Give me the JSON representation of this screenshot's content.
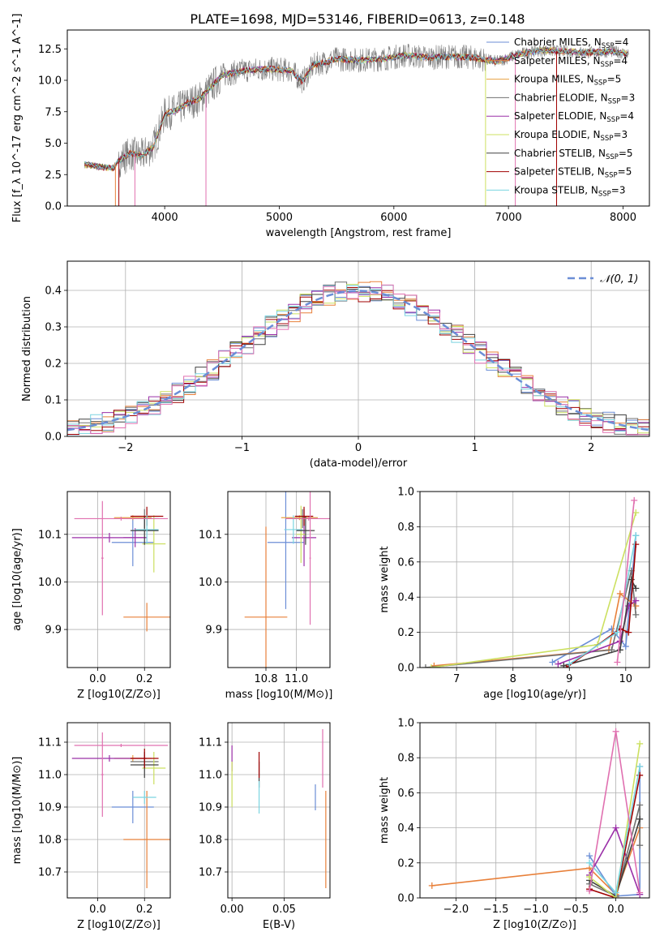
{
  "title": "PLATE=1698, MJD=53146, FIBERID=0613, z=0.148",
  "colors": {
    "chabrier_miles": "#6b8ed6",
    "salpeter_miles": "#e8803a",
    "kroupa_miles": "#e8803a",
    "chabrier_elodie": "#707070",
    "salpeter_elodie": "#9b30a8",
    "kroupa_elodie": "#cce060",
    "chabrier_stelib": "#404040",
    "salpeter_stelib": "#a00000",
    "kroupa_stelib": "#7ad4e0",
    "data": "#808080",
    "normal": "#6b8ed6",
    "pink": "#e070b0"
  },
  "chart_data": [
    {
      "id": "spectrum",
      "type": "line",
      "xlabel": "wavelength [Angstrom, rest frame]",
      "ylabel": "Flux [f_λ 10^-17 erg cm^-2 s^-1 A^-1]",
      "xlim": [
        3150,
        8230
      ],
      "ylim": [
        0,
        14.0
      ],
      "xticks": [
        4000,
        5000,
        6000,
        7000,
        8000
      ],
      "yticks": [
        0.0,
        2.5,
        5.0,
        7.5,
        10.0,
        12.5
      ],
      "ytick_labels": [
        "0.0",
        "2.5",
        "5.0",
        "7.5",
        "10.0",
        "12.5"
      ],
      "grid": false,
      "legend": "top-right",
      "series": [
        {
          "name": "Chabrier MILES, N_SSP=4",
          "color": "#6b8ed6"
        },
        {
          "name": "Salpeter MILES, N_SSP=4",
          "color": "#e8803a"
        },
        {
          "name": "Kroupa MILES, N_SSP=5",
          "color": "#e8a040"
        },
        {
          "name": "Chabrier ELODIE, N_SSP=3",
          "color": "#707070"
        },
        {
          "name": "Salpeter ELODIE, N_SSP=4",
          "color": "#9b30a8"
        },
        {
          "name": "Kroupa ELODIE, N_SSP=3",
          "color": "#cce060"
        },
        {
          "name": "Chabrier STELIB, N_SSP=5",
          "color": "#404040"
        },
        {
          "name": "Salpeter STELIB, N_SSP=5",
          "color": "#a00000"
        },
        {
          "name": "Kroupa STELIB, N_SSP=3",
          "color": "#7ad4e0"
        }
      ],
      "continuum": {
        "x": [
          3300,
          3450,
          3550,
          3600,
          3700,
          3800,
          3900,
          3950,
          4000,
          4100,
          4200,
          4300,
          4400,
          4500,
          4700,
          4900,
          5100,
          5200,
          5300,
          5500,
          5700,
          5900,
          6100,
          6300,
          6500,
          6700,
          6900,
          7100,
          7300,
          7500,
          7700,
          7900,
          8050
        ],
        "y": [
          3.3,
          3.1,
          3.0,
          3.6,
          4.2,
          4.0,
          4.7,
          6.0,
          7.3,
          7.6,
          8.2,
          8.5,
          9.4,
          10.4,
          10.8,
          10.9,
          10.8,
          9.9,
          11.2,
          11.7,
          11.6,
          11.7,
          12.0,
          11.8,
          11.9,
          11.8,
          11.5,
          12.1,
          12.4,
          12.3,
          12.2,
          12.3,
          12.1
        ]
      }
    },
    {
      "id": "histogram",
      "type": "bar",
      "xlabel": "(data-model)/error",
      "ylabel": "Normed distribution",
      "xlim": [
        -2.5,
        2.5
      ],
      "ylim": [
        0,
        0.48
      ],
      "xticks": [
        -2,
        -1,
        0,
        1,
        2
      ],
      "xtick_labels": [
        "−2",
        "−1",
        "0",
        "1",
        "2"
      ],
      "yticks": [
        0.0,
        0.1,
        0.2,
        0.3,
        0.4
      ],
      "ytick_labels": [
        "0.0",
        "0.1",
        "0.2",
        "0.3",
        "0.4"
      ],
      "grid": true,
      "legend": "top-right",
      "legend_label": "𝒩(0, 1)",
      "bin_width": 0.1
    },
    {
      "id": "age-vs-Z",
      "type": "scatter",
      "xlabel": "Z [log10(Z/Z⊙)]",
      "ylabel": "age  [log10(age/yr)]",
      "xlim": [
        -0.13,
        0.31
      ],
      "ylim": [
        9.82,
        10.19
      ],
      "xticks": [
        0.0,
        0.2
      ],
      "xtick_labels": [
        "0.0",
        "0.2"
      ],
      "yticks": [
        9.9,
        10.0,
        10.1
      ],
      "ytick_labels": [
        "9.9",
        "10.0",
        "10.1"
      ],
      "grid": true,
      "points": [
        {
          "x": 0.15,
          "xerr": 0.09,
          "y": 10.083,
          "yerr": 0.05,
          "color": "#6b8ed6"
        },
        {
          "x": 0.21,
          "xerr": 0.1,
          "y": 9.926,
          "yerr": 0.03,
          "color": "#e8803a"
        },
        {
          "x": 0.15,
          "xerr": 0.08,
          "y": 10.135,
          "yerr": 0.005,
          "color": "#e8a040"
        },
        {
          "x": 0.2,
          "xerr": 0.06,
          "y": 10.133,
          "yerr": 0.02,
          "color": "#707070"
        },
        {
          "x": 0.05,
          "xerr": 0.16,
          "y": 10.093,
          "yerr": 0.01,
          "color": "#9b30a8"
        },
        {
          "x": 0.16,
          "xerr": 0.05,
          "y": 10.093,
          "yerr": 0.02,
          "color": "#9b30a8"
        },
        {
          "x": 0.24,
          "xerr": 0.05,
          "y": 10.08,
          "yerr": 0.06,
          "color": "#cce060"
        },
        {
          "x": 0.2,
          "xerr": 0.06,
          "y": 10.108,
          "yerr": 0.03,
          "color": "#404040"
        },
        {
          "x": 0.21,
          "xerr": 0.07,
          "y": 10.138,
          "yerr": 0.02,
          "color": "#a00000"
        },
        {
          "x": 0.21,
          "xerr": 0.05,
          "y": 10.11,
          "yerr": 0.03,
          "color": "#7ad4e0"
        },
        {
          "x": 0.1,
          "xerr": 0.2,
          "y": 10.133,
          "yerr": 0.004,
          "color": "#e070b0"
        },
        {
          "x": 0.02,
          "xerr": 0.005,
          "y": 10.05,
          "yerr": 0.12,
          "color": "#e070b0"
        }
      ]
    },
    {
      "id": "age-vs-mass",
      "type": "scatter",
      "xlabel": "mass [log10(M/M⊙)]",
      "ylabel": "",
      "xlim": [
        10.55,
        11.22
      ],
      "ylim": [
        9.82,
        10.19
      ],
      "xticks": [
        10.8,
        11.0
      ],
      "xtick_labels": [
        "10.8",
        "11.0"
      ],
      "yticks": [
        9.9,
        10.0,
        10.1
      ],
      "ytick_labels": [
        "9.9",
        "10.0",
        "10.1"
      ],
      "grid": true,
      "points": [
        {
          "x": 10.93,
          "xerr": 0.12,
          "y": 10.083,
          "yerr": 0.14,
          "color": "#6b8ed6"
        },
        {
          "x": 10.8,
          "xerr": 0.14,
          "y": 9.926,
          "yerr": 0.19,
          "color": "#e8803a"
        },
        {
          "x": 11.02,
          "xerr": 0.12,
          "y": 10.135,
          "yerr": 0.005,
          "color": "#e8a040"
        },
        {
          "x": 11.04,
          "xerr": 0.1,
          "y": 10.133,
          "yerr": 0.02,
          "color": "#707070"
        },
        {
          "x": 11.05,
          "xerr": 0.08,
          "y": 10.093,
          "yerr": 0.06,
          "color": "#9b30a8"
        },
        {
          "x": 11.03,
          "xerr": 0.03,
          "y": 10.1,
          "yerr": 0.06,
          "color": "#cce060"
        },
        {
          "x": 11.06,
          "xerr": 0.06,
          "y": 10.108,
          "yerr": 0.03,
          "color": "#404040"
        },
        {
          "x": 11.05,
          "xerr": 0.06,
          "y": 10.138,
          "yerr": 0.02,
          "color": "#a00000"
        },
        {
          "x": 10.98,
          "xerr": 0.06,
          "y": 10.11,
          "yerr": 0.03,
          "color": "#7ad4e0"
        },
        {
          "x": 11.08,
          "xerr": 0.15,
          "y": 10.133,
          "yerr": 0.004,
          "color": "#e070b0"
        },
        {
          "x": 11.09,
          "xerr": 0.005,
          "y": 10.05,
          "yerr": 0.14,
          "color": "#e070b0"
        }
      ]
    },
    {
      "id": "weight-vs-age",
      "type": "line",
      "xlabel": "age  [log10(age/yr)]",
      "ylabel": "mass weight",
      "xlim": [
        6.35,
        10.42
      ],
      "ylim": [
        0,
        1.0
      ],
      "xticks": [
        7,
        8,
        9,
        10
      ],
      "xtick_labels": [
        "7",
        "8",
        "9",
        "10"
      ],
      "yticks": [
        0.0,
        0.2,
        0.4,
        0.6,
        0.8,
        1.0
      ],
      "ytick_labels": [
        "0.0",
        "0.2",
        "0.4",
        "0.6",
        "0.8",
        "1.0"
      ],
      "grid": true,
      "series": [
        {
          "color": "#6b8ed6",
          "x": [
            8.7,
            9.75,
            10.0,
            10.18
          ],
          "y": [
            0.03,
            0.22,
            0.12,
            0.75
          ]
        },
        {
          "color": "#e8803a",
          "x": [
            6.6,
            9.7,
            9.9,
            10.18
          ],
          "y": [
            0.01,
            0.1,
            0.42,
            0.35
          ]
        },
        {
          "color": "#707070",
          "x": [
            6.45,
            9.75,
            10.1,
            10.18
          ],
          "y": [
            0.0,
            0.1,
            0.55,
            0.3
          ]
        },
        {
          "color": "#9b30a8",
          "x": [
            8.8,
            9.9,
            10.05,
            10.18
          ],
          "y": [
            0.02,
            0.15,
            0.35,
            0.38
          ]
        },
        {
          "color": "#cce060",
          "x": [
            6.55,
            9.5,
            10.18
          ],
          "y": [
            0.0,
            0.13,
            0.88
          ]
        },
        {
          "color": "#404040",
          "x": [
            8.9,
            9.9,
            10.1,
            10.18
          ],
          "y": [
            0.01,
            0.1,
            0.5,
            0.45
          ]
        },
        {
          "color": "#a00000",
          "x": [
            8.95,
            9.9,
            10.05,
            10.18
          ],
          "y": [
            0.0,
            0.22,
            0.2,
            0.7
          ]
        },
        {
          "color": "#7ad4e0",
          "x": [
            9.0,
            9.85,
            10.18
          ],
          "y": [
            0.02,
            0.2,
            0.75
          ]
        },
        {
          "color": "#e070b0",
          "x": [
            9.85,
            10.15
          ],
          "y": [
            0.03,
            0.95
          ]
        }
      ]
    },
    {
      "id": "mass-vs-Z",
      "type": "scatter",
      "xlabel": "Z [log10(Z/Z⊙)]",
      "ylabel": "mass [log10(M/M⊙)]",
      "xlim": [
        -0.13,
        0.31
      ],
      "ylim": [
        10.62,
        11.16
      ],
      "xticks": [
        0.0,
        0.2
      ],
      "xtick_labels": [
        "0.0",
        "0.2"
      ],
      "yticks": [
        10.7,
        10.8,
        10.9,
        11.0,
        11.1
      ],
      "ytick_labels": [
        "10.7",
        "10.8",
        "10.9",
        "11.0",
        "11.1"
      ],
      "grid": true,
      "points": [
        {
          "x": 0.15,
          "xerr": 0.09,
          "y": 10.9,
          "yerr": 0.05,
          "color": "#6b8ed6"
        },
        {
          "x": 0.21,
          "xerr": 0.1,
          "y": 10.8,
          "yerr": 0.15,
          "color": "#e8803a"
        },
        {
          "x": 0.15,
          "xerr": 0.08,
          "y": 11.05,
          "yerr": 0.01,
          "color": "#e8a040"
        },
        {
          "x": 0.2,
          "xerr": 0.06,
          "y": 11.04,
          "yerr": 0.02,
          "color": "#707070"
        },
        {
          "x": 0.05,
          "xerr": 0.16,
          "y": 11.05,
          "yerr": 0.01,
          "color": "#9b30a8"
        },
        {
          "x": 0.24,
          "xerr": 0.05,
          "y": 11.02,
          "yerr": 0.05,
          "color": "#cce060"
        },
        {
          "x": 0.2,
          "xerr": 0.06,
          "y": 11.03,
          "yerr": 0.04,
          "color": "#404040"
        },
        {
          "x": 0.2,
          "xerr": 0.06,
          "y": 11.05,
          "yerr": 0.03,
          "color": "#a00000"
        },
        {
          "x": 0.2,
          "xerr": 0.05,
          "y": 10.93,
          "yerr": 0.02,
          "color": "#7ad4e0"
        },
        {
          "x": 0.1,
          "xerr": 0.2,
          "y": 11.09,
          "yerr": 0.005,
          "color": "#e070b0"
        },
        {
          "x": 0.02,
          "xerr": 0.005,
          "y": 11.0,
          "yerr": 0.13,
          "color": "#e070b0"
        }
      ]
    },
    {
      "id": "mass-vs-ebv",
      "type": "scatter",
      "xlabel": "E(B-V)",
      "ylabel": "",
      "xlim": [
        -0.004,
        0.094
      ],
      "ylim": [
        10.62,
        11.16
      ],
      "xticks": [
        0.0,
        0.05
      ],
      "xtick_labels": [
        "0.00",
        "0.05"
      ],
      "yticks": [
        10.7,
        10.8,
        10.9,
        11.0,
        11.1
      ],
      "ytick_labels": [
        "10.7",
        "10.8",
        "10.9",
        "11.0",
        "11.1"
      ],
      "grid": true,
      "points": [
        {
          "x": 0.08,
          "y": 10.93,
          "yerr": 0.04,
          "color": "#6b8ed6"
        },
        {
          "x": 0.09,
          "y": 10.8,
          "yerr": 0.15,
          "color": "#e8803a"
        },
        {
          "x": 0.0,
          "y": 11.05,
          "yerr": 0.04,
          "color": "#9b30a8"
        },
        {
          "x": 0.0,
          "y": 10.97,
          "yerr": 0.07,
          "color": "#cce060"
        },
        {
          "x": 0.026,
          "y": 11.0,
          "yerr": 0.04,
          "color": "#404040"
        },
        {
          "x": 0.026,
          "y": 11.03,
          "yerr": 0.04,
          "color": "#a00000"
        },
        {
          "x": 0.026,
          "y": 10.93,
          "yerr": 0.05,
          "color": "#7ad4e0"
        },
        {
          "x": 0.087,
          "y": 11.05,
          "yerr": 0.09,
          "color": "#e070b0"
        }
      ]
    },
    {
      "id": "weight-vs-Z",
      "type": "line",
      "xlabel": "Z [log10(Z/Z⊙)]",
      "ylabel": "mass weight",
      "xlim": [
        -2.45,
        0.42
      ],
      "ylim": [
        0,
        1.0
      ],
      "xticks": [
        -2.0,
        -1.5,
        -1.0,
        -0.5,
        0.0
      ],
      "xtick_labels": [
        "−2.0",
        "−1.5",
        "−1.0",
        "−0.5",
        "0.0"
      ],
      "yticks": [
        0.0,
        0.2,
        0.4,
        0.6,
        0.8,
        1.0
      ],
      "ytick_labels": [
        "0.0",
        "0.2",
        "0.4",
        "0.6",
        "0.8",
        "1.0"
      ],
      "grid": true,
      "series": [
        {
          "color": "#e8803a",
          "x": [
            -2.3,
            -0.33,
            0.0,
            0.3
          ],
          "y": [
            0.07,
            0.17,
            0.02,
            0.4
          ]
        },
        {
          "color": "#6b8ed6",
          "x": [
            -0.33,
            0.0,
            0.3,
            0.3
          ],
          "y": [
            0.24,
            0.01,
            0.02,
            0.75
          ]
        },
        {
          "color": "#9b30a8",
          "x": [
            -0.33,
            0.0,
            0.3
          ],
          "y": [
            0.13,
            0.4,
            0.02
          ]
        },
        {
          "color": "#707070",
          "x": [
            -0.33,
            0.0,
            0.3,
            0.3
          ],
          "y": [
            0.08,
            0.01,
            0.53,
            0.3
          ]
        },
        {
          "color": "#404040",
          "x": [
            -0.33,
            0.0,
            0.3
          ],
          "y": [
            0.1,
            0.01,
            0.45
          ]
        },
        {
          "color": "#a00000",
          "x": [
            -0.33,
            0.0,
            0.3
          ],
          "y": [
            0.05,
            0.0,
            0.7
          ]
        },
        {
          "color": "#cce060",
          "x": [
            -0.33,
            0.0,
            0.3
          ],
          "y": [
            0.12,
            0.0,
            0.88
          ]
        },
        {
          "color": "#7ad4e0",
          "x": [
            -0.33,
            0.0,
            0.3
          ],
          "y": [
            0.2,
            0.03,
            0.75
          ]
        },
        {
          "color": "#e070b0",
          "x": [
            -0.33,
            0.0,
            0.3
          ],
          "y": [
            0.04,
            0.95,
            0.03
          ]
        }
      ]
    }
  ]
}
